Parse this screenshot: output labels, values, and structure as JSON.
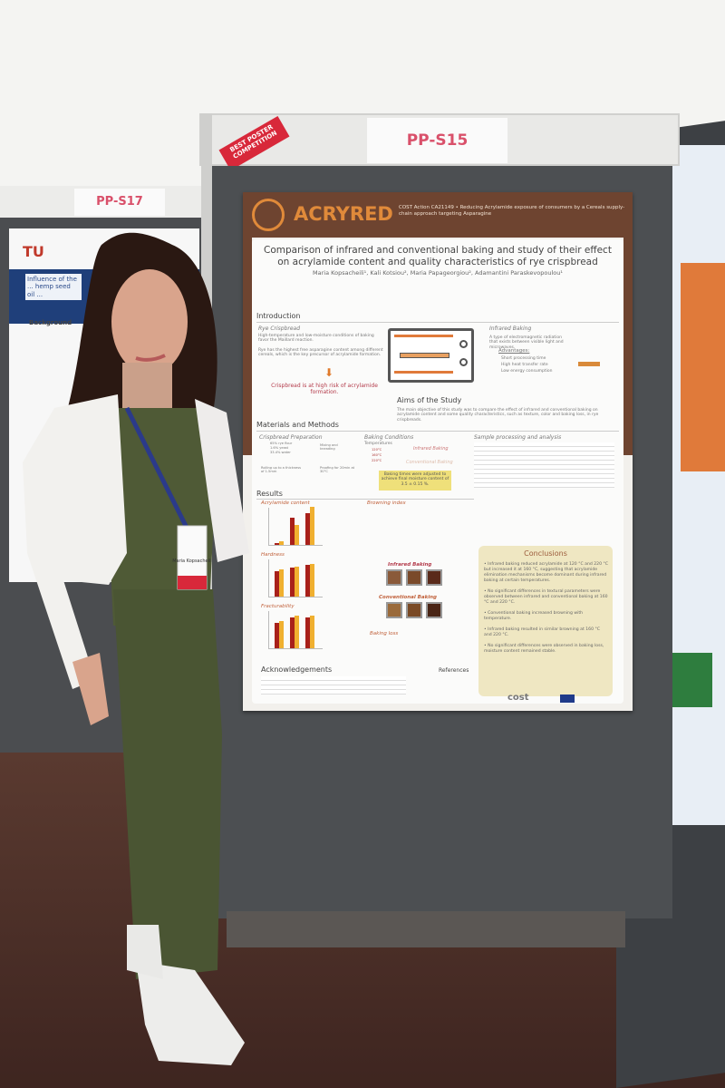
{
  "left_board": {
    "label": "PP-S17",
    "poster_title": "Influence of the ... hemp seed oil ...",
    "poster_section": "Background"
  },
  "main_board": {
    "label": "PP-S15",
    "ribbon": "BEST POSTER COMPETITION"
  },
  "poster": {
    "brand": "ACRYRED",
    "cost_action": "COST Action CA21149 • Reducing Acrylamide exposure of consumers by a Cereals supply-chain approach targeting Asparagine",
    "title": "Comparison of infrared and conventional baking and study of their effect on acrylamide content and quality characteristics of rye crispbread",
    "authors": "Maria Kopsacheili¹, Kali Kotsiou², Maria Papageorgiou², Adamantini Paraskevopoulou¹",
    "introduction": {
      "heading": "Introduction",
      "rye_heading": "Rye Crispbread",
      "rye_text1": "High-temperature and low-moisture conditions of baking favor the Maillard reaction.",
      "rye_text2": "Rye has the highest free asparagine content among different cereals, which is the key precursor of acrylamide formation.",
      "risk": "Crispbread is at high risk of acrylamide formation.",
      "ir_heading": "Infrared Baking",
      "ir_text": "A type of electromagnetic radiation that exists between visible light and microwaves.",
      "advantages": "Advantages:",
      "adv": [
        "Short processing time",
        "High heat transfer rate",
        "Low energy consumption"
      ]
    },
    "aims": {
      "heading": "Aims of the Study",
      "text": "The main objective of this study was to compare the effect of infrared and conventional baking on acrylamide content and some quality characteristics, such as texture, color and baking loss, in rye crispbreads."
    },
    "methods": {
      "heading": "Materials and Methods",
      "prep_heading": "Crispbread Preparation",
      "prep": [
        "65% rye flour",
        "1.6% yeast",
        "33.4% water",
        "Mixing and kneading",
        "Rolling up to a thickness of 1.5mm",
        "Proofing for 20min at 30°C"
      ],
      "bake_heading": "Baking Conditions",
      "temps_label": "Temperatures",
      "temps": [
        "120°C",
        "160°C",
        "220°C"
      ],
      "ir": "Infrared Baking",
      "conv": "Conventional Baking",
      "moisture": "Baking times were adjusted to achieve final moisture content of 3.5 ± 0.15 %.",
      "sample_heading": "Sample processing and analysis"
    },
    "results": {
      "heading": "Results",
      "charts": [
        "Acrylamide content",
        "Hardness",
        "Fracturability"
      ],
      "browning": "Browning index",
      "ir_baking": "Infrared Baking",
      "conv_baking": "Conventional Baking",
      "loss": "Baking loss"
    },
    "conclusions": {
      "heading": "Conclusions",
      "items": [
        "Infrared baking reduced acrylamide at 120 °C and 220 °C but increased it at 160 °C, suggesting that acrylamide elimination mechanisms become dominant during infrared baking at certain temperatures.",
        "No significant differences in textural parameters were observed between infrared and conventional baking at 160 °C and 220 °C.",
        "Conventional baking increased browning with temperature.",
        "Infrared baking resulted in similar browning at 160 °C and 220 °C.",
        "No significant differences were observed in baking loss, moisture content remained stable."
      ]
    },
    "ack_heading": "Acknowledgements",
    "ref_heading": "References",
    "footer_logo": "cost"
  },
  "badge": {
    "name": "Maria Kopsacheili"
  },
  "colors": {
    "poster_brown": "#6e4430",
    "accent_orange": "#e08a3a",
    "label_red": "#d9506a",
    "board_gray": "#4c4f52"
  }
}
